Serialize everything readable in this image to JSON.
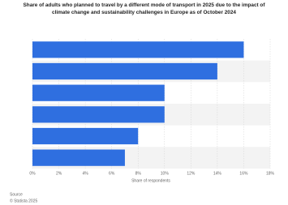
{
  "chart_data": {
    "type": "barh",
    "title": "Share of adults who planned to travel by a different mode of transport in 2025 due to the impact of climate change and sustainability challenges in Europe as of October 2024",
    "categories": [
      null,
      null,
      null,
      null,
      null,
      null
    ],
    "values": [
      16,
      14,
      10,
      10,
      8,
      7
    ],
    "color": "#2f6fe0",
    "xlim": [
      0,
      18
    ],
    "xticks": [
      {
        "value": 0,
        "label": "0%"
      },
      {
        "value": 2,
        "label": "2%"
      },
      {
        "value": 4,
        "label": "4%"
      },
      {
        "value": 6,
        "label": "6%"
      },
      {
        "value": 8,
        "label": "8%"
      },
      {
        "value": 10,
        "label": "10%"
      },
      {
        "value": 12,
        "label": "12%"
      },
      {
        "value": 14,
        "label": "14%"
      },
      {
        "value": 16,
        "label": "16%"
      },
      {
        "value": 18,
        "label": "18%"
      }
    ],
    "xlabel": "Share of respondents",
    "grid": true,
    "source": [
      "Source",
      "© Statista 2025"
    ]
  }
}
